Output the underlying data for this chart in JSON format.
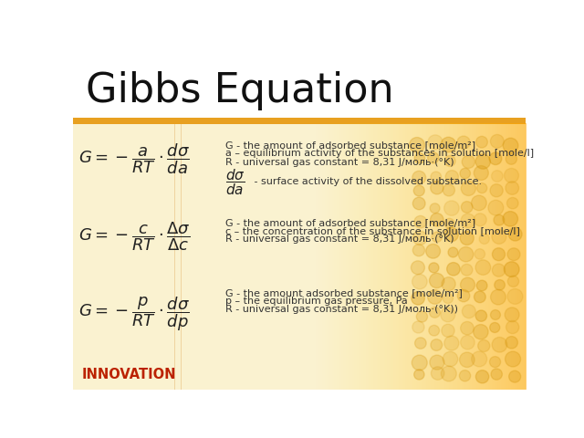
{
  "title": "Gibbs Equation",
  "title_fontsize": 32,
  "title_color": "#111111",
  "bg_main": "#fdf6e0",
  "bg_title": "#ffffff",
  "orange_stripe": "#e8a020",
  "innovation_text": "INNOVATION",
  "innovation_color": "#bb2200",
  "eq1_desc1": "G - the amount of adsorbed substance [mole/m²]",
  "eq1_desc2": "a – equilibrium activity of the substances in solution [mole/l]",
  "eq1_desc3": "R - universal gas constant = 8,31 J/моль·(°K)",
  "eq1_dsigma_desc": " - surface activity of the dissolved substance.",
  "eq2_desc1": "G - the amount of adsorbed substance [mole/m²]",
  "eq2_desc2": "c – the concentration of the substance in solution [mole/l]",
  "eq2_desc3": "R - universal gas constant = 8,31 J/моль·(°K)",
  "eq3_desc1": "G - the amount adsorbed substance [mole/m²]",
  "eq3_desc2": "p – the equilibrium gas pressure, Pa",
  "eq3_desc3": "R - universal gas constant = 8,31 J/моль·(°K))",
  "text_color": "#333333",
  "eq_color": "#222222",
  "desc_fontsize": 8.0,
  "eq_fontsize": 13
}
